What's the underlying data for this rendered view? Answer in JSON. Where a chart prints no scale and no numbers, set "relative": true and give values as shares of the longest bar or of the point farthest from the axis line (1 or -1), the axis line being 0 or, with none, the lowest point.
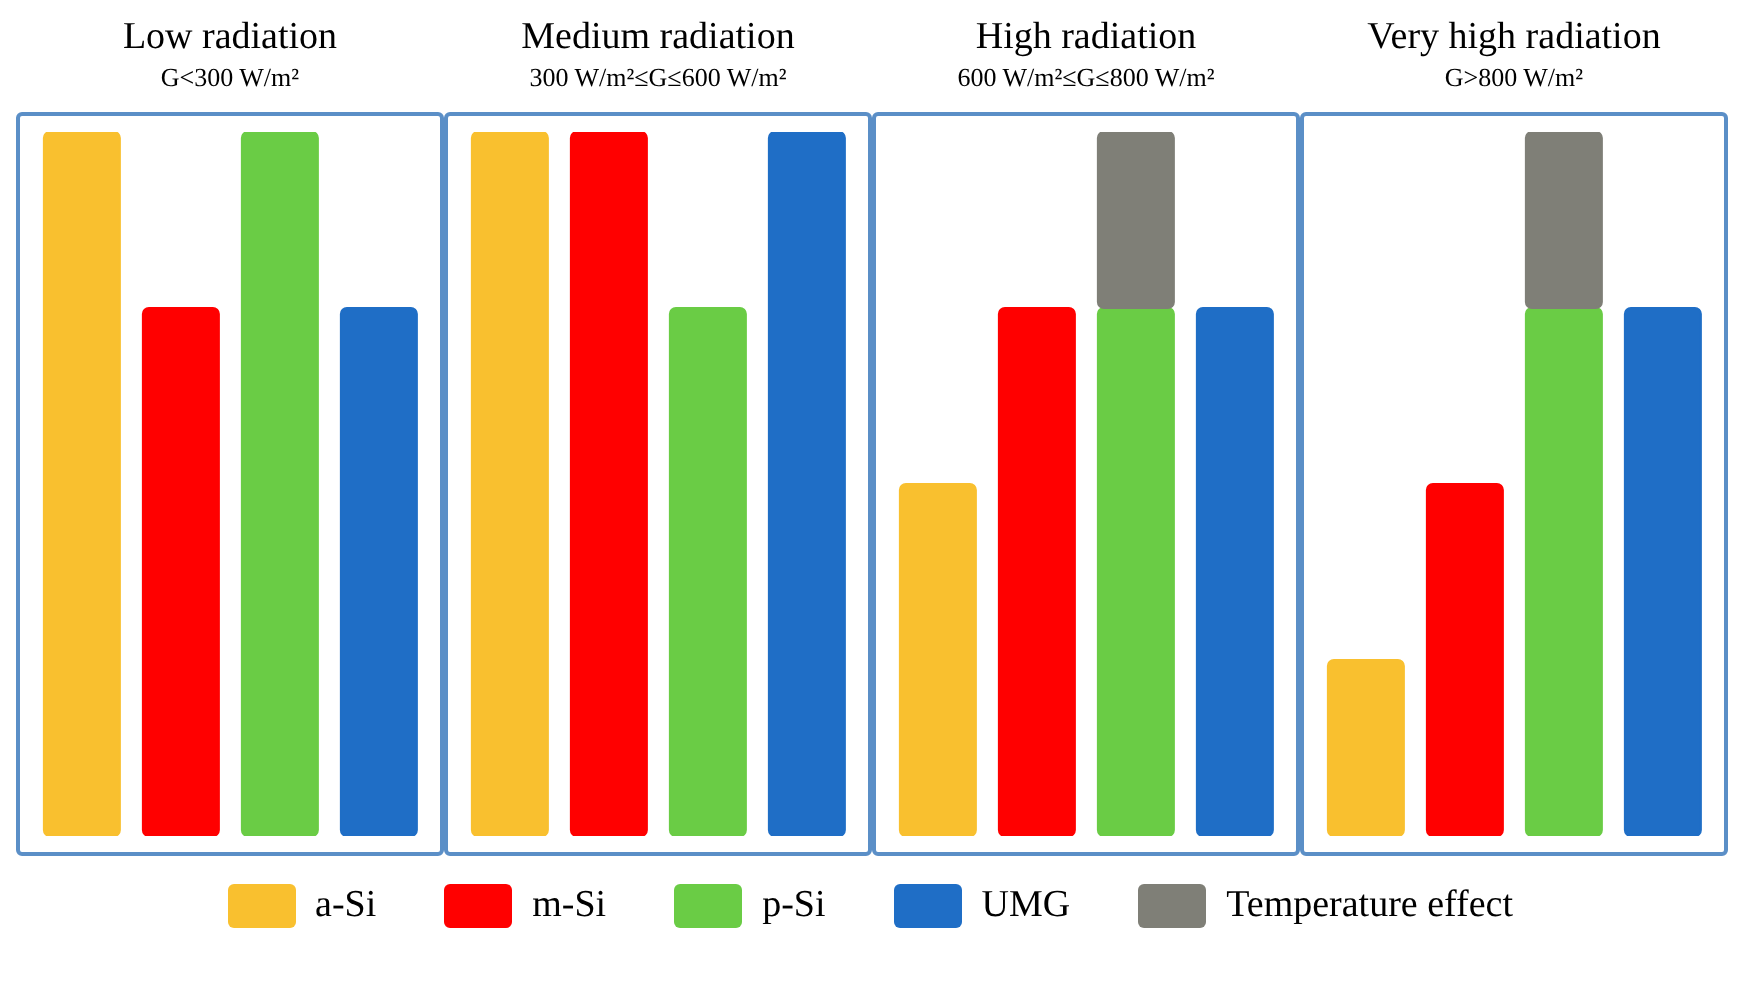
{
  "chart_data": [
    {
      "type": "bar",
      "title": "Low radiation",
      "subtitle": "G<300 W/m²",
      "categories": [
        null,
        null,
        null,
        null
      ],
      "stacked": true,
      "relative": true,
      "tick_labels": false,
      "legend": "bottom",
      "series": [
        {
          "name": "a-Si",
          "color": "#f9c02f",
          "values": [
            1,
            null,
            null,
            null
          ]
        },
        {
          "name": "m-Si",
          "color": "#ff0000",
          "values": [
            null,
            0.75,
            null,
            null
          ]
        },
        {
          "name": "p-Si",
          "color": "#6acc45",
          "values": [
            null,
            null,
            1,
            null
          ]
        },
        {
          "name": "UMG",
          "color": "#1f6ec6",
          "values": [
            null,
            null,
            null,
            0.75
          ]
        },
        {
          "name": "Temperature effect",
          "color": "#7f7f77",
          "values": [
            null,
            null,
            null,
            null
          ]
        }
      ]
    },
    {
      "type": "bar",
      "title": "Medium radiation",
      "subtitle": "300 W/m²≤G≤600 W/m²",
      "categories": [
        null,
        null,
        null,
        null
      ],
      "stacked": true,
      "relative": true,
      "tick_labels": false,
      "series": [
        {
          "color": "#f9c02f",
          "values": [
            1,
            null,
            null,
            null
          ]
        },
        {
          "color": "#ff0000",
          "values": [
            null,
            1,
            null,
            null
          ]
        },
        {
          "color": "#6acc45",
          "values": [
            null,
            null,
            0.75,
            null
          ]
        },
        {
          "color": "#1f6ec6",
          "values": [
            null,
            null,
            null,
            1
          ]
        }
      ]
    },
    {
      "type": "bar",
      "title": "High radiation",
      "subtitle": "600 W/m²≤G≤800 W/m²",
      "categories": [
        null,
        null,
        null,
        null
      ],
      "stacked": true,
      "relative": true,
      "tick_labels": false,
      "series": [
        {
          "color": "#f9c02f",
          "values": [
            0.5,
            null,
            null,
            null
          ]
        },
        {
          "color": "#ff0000",
          "values": [
            null,
            0.75,
            null,
            null
          ]
        },
        {
          "color": "#6acc45",
          "values": [
            null,
            null,
            0.75,
            null
          ]
        },
        {
          "color": "#1f6ec6",
          "values": [
            null,
            null,
            null,
            0.75
          ]
        },
        {
          "color": "#7f7f77",
          "values": [
            null,
            null,
            0.25,
            null
          ]
        }
      ]
    },
    {
      "type": "bar",
      "title": "Very high radiation",
      "subtitle": "G>800 W/m²",
      "categories": [
        null,
        null,
        null,
        null
      ],
      "stacked": true,
      "relative": true,
      "tick_labels": false,
      "series": [
        {
          "color": "#f9c02f",
          "values": [
            0.25,
            null,
            null,
            null
          ]
        },
        {
          "color": "#ff0000",
          "values": [
            null,
            0.5,
            null,
            null
          ]
        },
        {
          "color": "#6acc45",
          "values": [
            null,
            null,
            0.75,
            null
          ]
        },
        {
          "color": "#1f6ec6",
          "values": [
            null,
            null,
            null,
            0.75
          ]
        },
        {
          "color": "#7f7f77",
          "values": [
            null,
            null,
            0.25,
            null
          ]
        }
      ]
    }
  ]
}
